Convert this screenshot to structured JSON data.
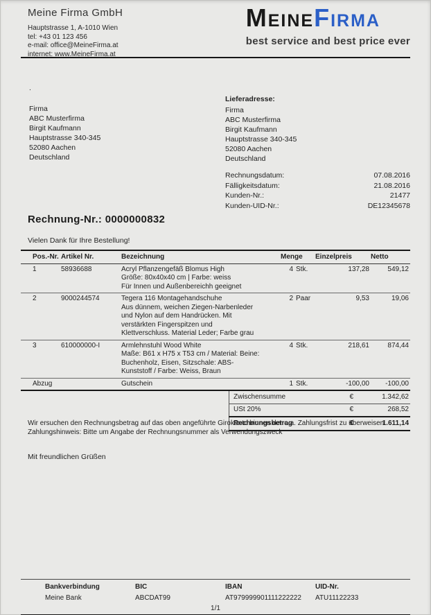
{
  "colors": {
    "logo_blue": "#2b5fc7",
    "page_bg": "#e9e9e7",
    "rule_dark": "#161616"
  },
  "header": {
    "company_name": "Meine Firma GmbH",
    "contact_lines": [
      "Hauptstrasse 1, A-1010 Wien",
      "tel: +43 01 123 456",
      "e-mail: office@MeineFirma.at",
      "internet: www.MeineFirma.at"
    ],
    "logo": {
      "word_black": "Meine",
      "word_blue": "Firma",
      "tagline": "best service and best price ever"
    }
  },
  "addresses": {
    "billing_dot": ".",
    "billing_lines": [
      "Firma",
      "ABC Musterfirma",
      "Birgit Kaufmann",
      "Hauptstrasse 340-345",
      "52080 Aachen",
      "Deutschland"
    ],
    "shipping_label": "Lieferadresse:",
    "shipping_lines": [
      "Firma",
      "ABC Musterfirma",
      "Birgit Kaufmann",
      "Hauptstrasse 340-345",
      "52080 Aachen",
      "Deutschland"
    ]
  },
  "meta": {
    "rows": [
      {
        "label": "Rechnungsdatum:",
        "value": "07.08.2016"
      },
      {
        "label": "Fälligkeitsdatum:",
        "value": "21.08.2016"
      },
      {
        "label": "Kunden-Nr.:",
        "value": "21477"
      },
      {
        "label": "Kunden-UID-Nr.:",
        "value": "DE12345678"
      }
    ]
  },
  "invoice_number": {
    "label": "Rechnung-Nr.:",
    "value": "0000000832"
  },
  "greeting": "Vielen Dank für Ihre Bestellung!",
  "items_table": {
    "headers": [
      "Pos.-Nr.",
      "Artikel Nr.",
      "Bezeichnung",
      "Menge",
      "Einzelpreis",
      "Netto"
    ],
    "rows": [
      {
        "pos": "1",
        "artikel": "58936688",
        "lines": [
          "Acryl Pflanzengefäß Blomus High",
          "Größe: 80x40x40 cm | Farbe: weiss",
          "Für Innen und Außenbereichh geeignet"
        ],
        "qty": "4",
        "unit": "Stk.",
        "unit_price": "137,28",
        "net": "549,12"
      },
      {
        "pos": "2",
        "artikel": "9000244574",
        "lines": [
          "Tegera 116 Montagehandschuhe",
          "Aus dünnem, weichen Ziegen-Narbenleder",
          "und Nylon auf dem Handrücken. Mit",
          "verstärkten Fingerspitzen und",
          "Klettverschluss. Material Leder; Farbe grau"
        ],
        "qty": "2",
        "unit": "Paar",
        "unit_price": "9,53",
        "net": "19,06"
      },
      {
        "pos": "3",
        "artikel": "610000000-I",
        "lines": [
          "Armlehnstuhl Wood White",
          "Maße: B61 x H75 x T53 cm / Material: Beine:",
          "Buchenholz, Eisen, Sitzschale: ABS-",
          "Kunststoff / Farbe: Weiss, Braun"
        ],
        "qty": "4",
        "unit": "Stk.",
        "unit_price": "218,61",
        "net": "874,44"
      }
    ],
    "deduction": {
      "pos": "Abzug",
      "artikel": "",
      "name": "Gutschein",
      "qty": "1",
      "unit": "Stk.",
      "unit_price": "-100,00",
      "net": "-100,00"
    },
    "totals": [
      {
        "label": "Zwischensumme",
        "currency": "€",
        "value": "1.342,62"
      },
      {
        "label": "USt 20%",
        "currency": "€",
        "value": "268,52"
      },
      {
        "label": "Rechnungsbetrag",
        "currency": "€",
        "value": "1.611,14"
      }
    ]
  },
  "notes": [
    "Wir ersuchen den Rechnungsbetrag auf das oben angeführte Girokonto binnen der o.a. Zahlungsfrist zu überweisen.",
    "Zahlungshinweis: Bitte um Angabe der Rechnungsnummer als Verwendungszweck"
  ],
  "closing": "Mit freundlichen Grüßen",
  "footer": {
    "columns": [
      {
        "label": "Bankverbindung",
        "value": "Meine Bank"
      },
      {
        "label": "BIC",
        "value": "ABCDAT99"
      },
      {
        "label": "IBAN",
        "value": "AT979999901111222222"
      },
      {
        "label": "UID-Nr.",
        "value": "ATU11122233"
      }
    ],
    "page_indicator": "1/1"
  }
}
